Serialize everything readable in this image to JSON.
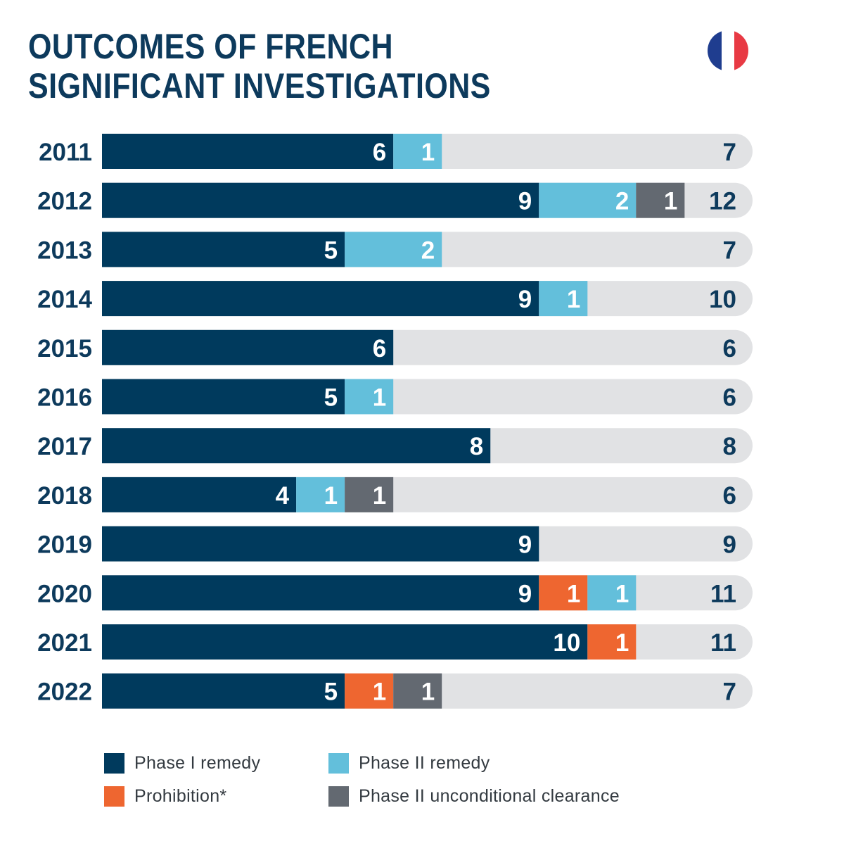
{
  "title_lines": [
    "OUTCOMES OF FRENCH",
    "SIGNIFICANT INVESTIGATIONS"
  ],
  "colors": {
    "phase1_remedy": "#003a5d",
    "phase2_remedy": "#63bfdb",
    "prohibition": "#ee6630",
    "phase2_unconditional": "#636971",
    "track": "#e1e2e4",
    "label_text": "#0d3a5c",
    "flag_blue": "#1f3d8f",
    "flag_white": "#ffffff",
    "flag_red": "#e83a44"
  },
  "legend": [
    {
      "label": "Phase I remedy",
      "color_key": "phase1_remedy"
    },
    {
      "label": "Phase II remedy",
      "color_key": "phase2_remedy"
    },
    {
      "label": "Prohibition*",
      "color_key": "prohibition"
    },
    {
      "label": "Phase II unconditional clearance",
      "color_key": "phase2_unconditional"
    }
  ],
  "chart_data": {
    "type": "bar",
    "orientation": "horizontal",
    "stacked": true,
    "title": "OUTCOMES OF FRENCH SIGNIFICANT INVESTIGATIONS",
    "categories": [
      "2011",
      "2012",
      "2013",
      "2014",
      "2015",
      "2016",
      "2017",
      "2018",
      "2019",
      "2020",
      "2021",
      "2022"
    ],
    "series": [
      {
        "name": "Phase I remedy",
        "color_key": "phase1_remedy",
        "values": [
          6,
          9,
          5,
          9,
          6,
          5,
          8,
          4,
          9,
          9,
          10,
          5
        ]
      },
      {
        "name": "Prohibition*",
        "color_key": "prohibition",
        "values": [
          0,
          0,
          0,
          0,
          0,
          0,
          0,
          0,
          0,
          1,
          1,
          1
        ]
      },
      {
        "name": "Phase II remedy",
        "color_key": "phase2_remedy",
        "values": [
          1,
          2,
          2,
          1,
          0,
          1,
          0,
          1,
          0,
          1,
          0,
          0
        ]
      },
      {
        "name": "Phase II unconditional clearance",
        "color_key": "phase2_unconditional",
        "values": [
          0,
          1,
          0,
          0,
          0,
          0,
          0,
          1,
          0,
          0,
          0,
          1
        ]
      }
    ],
    "totals": [
      7,
      12,
      7,
      10,
      6,
      6,
      8,
      6,
      9,
      11,
      11,
      7
    ],
    "xlim": [
      0,
      13.4
    ],
    "grid": false,
    "legend_position": "bottom"
  }
}
